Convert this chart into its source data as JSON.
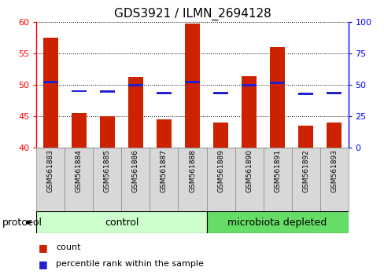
{
  "title": "GDS3921 / ILMN_2694128",
  "samples": [
    "GSM561883",
    "GSM561884",
    "GSM561885",
    "GSM561886",
    "GSM561887",
    "GSM561888",
    "GSM561889",
    "GSM561890",
    "GSM561891",
    "GSM561892",
    "GSM561893"
  ],
  "count_values": [
    57.5,
    45.5,
    45.0,
    51.2,
    44.5,
    59.8,
    44.0,
    51.4,
    56.0,
    43.5,
    44.0
  ],
  "percentile_values": [
    52.0,
    45.0,
    44.5,
    49.5,
    43.5,
    52.0,
    43.5,
    49.5,
    51.5,
    43.0,
    43.5
  ],
  "ylim_left": [
    40,
    60
  ],
  "ylim_right": [
    0,
    100
  ],
  "yticks_left": [
    40,
    45,
    50,
    55,
    60
  ],
  "yticks_right": [
    0,
    25,
    50,
    75,
    100
  ],
  "bar_color": "#cc2200",
  "percentile_color": "#2222cc",
  "n_control": 6,
  "n_microbiota": 5,
  "control_color": "#ccffcc",
  "microbiota_color": "#66dd66",
  "control_label": "control",
  "microbiota_label": "microbiota depleted",
  "protocol_label": "protocol",
  "legend_count": "count",
  "legend_percentile": "percentile rank within the sample",
  "title_fontsize": 11,
  "tick_fontsize": 8,
  "sample_fontsize": 6.5,
  "group_fontsize": 9,
  "legend_fontsize": 8
}
